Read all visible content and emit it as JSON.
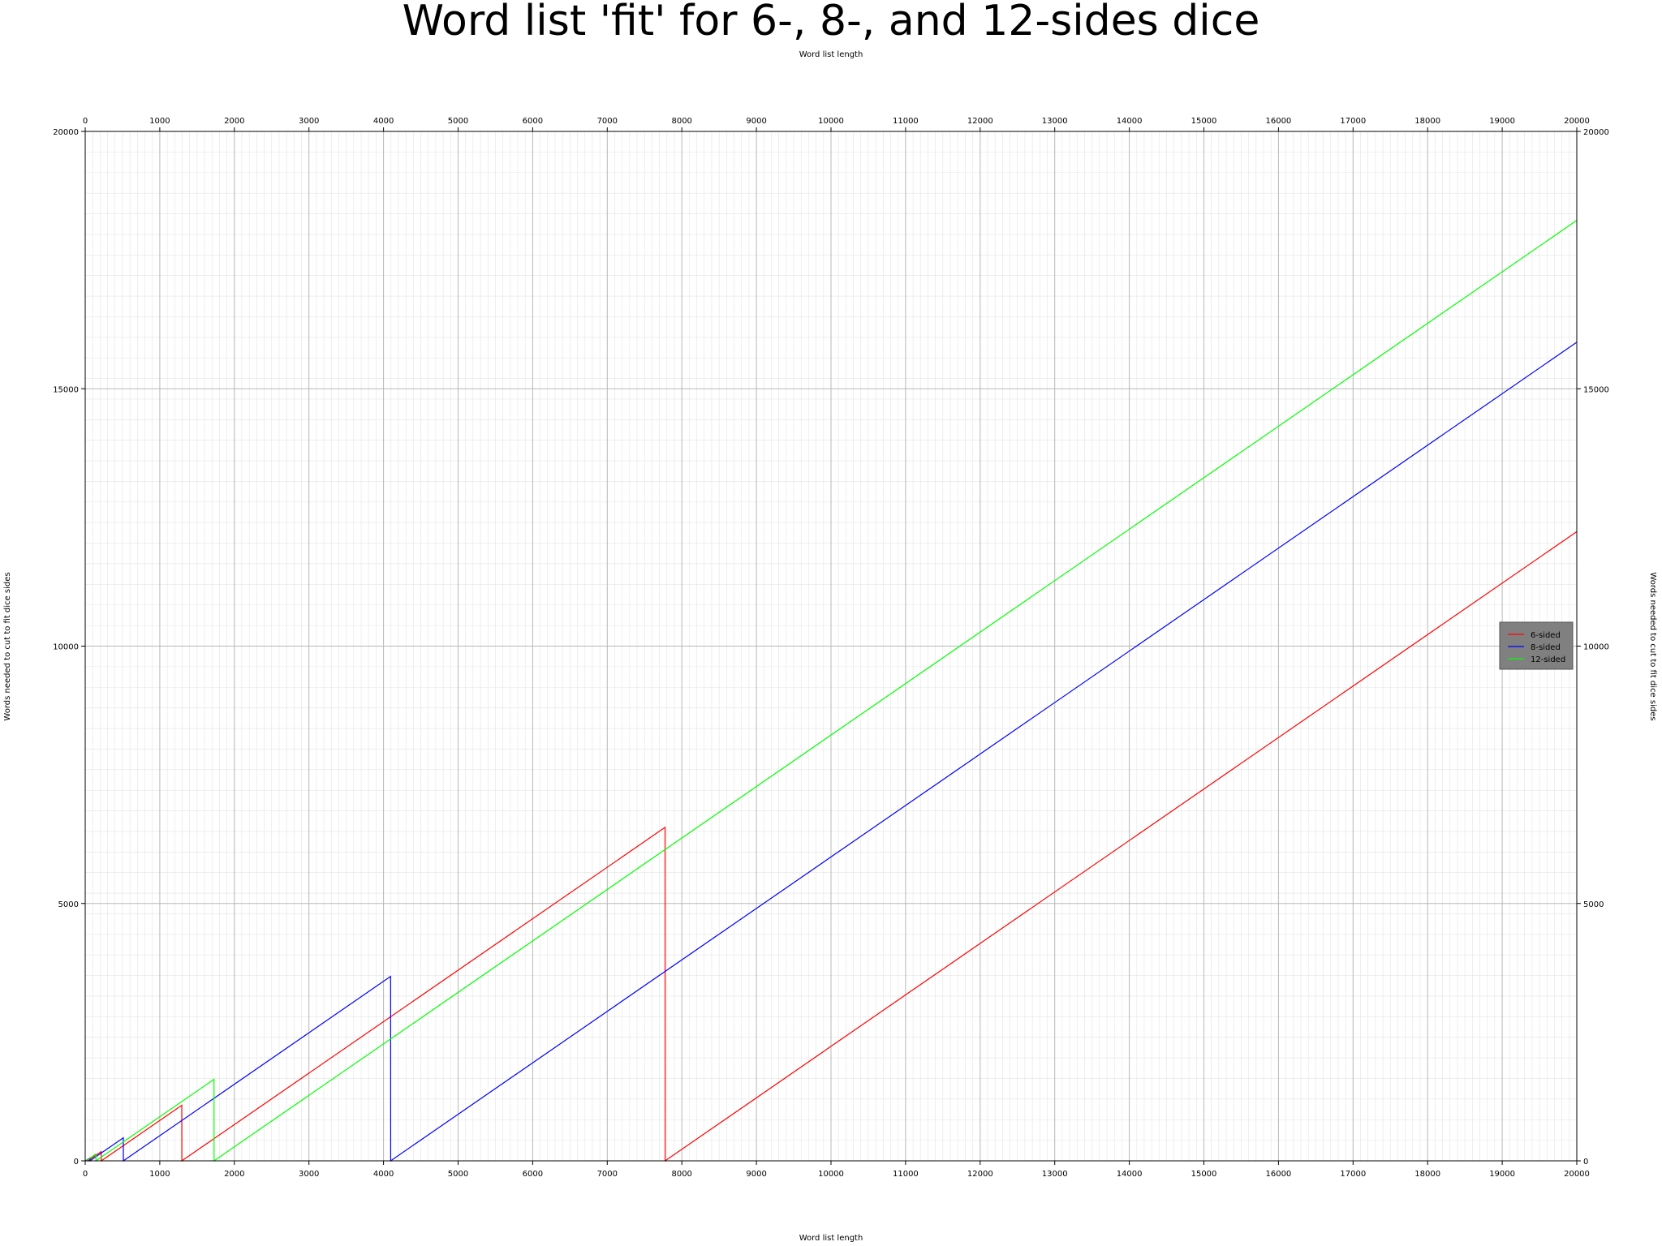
{
  "chart_data": {
    "type": "line",
    "title": "Word list 'fit' for 6-, 8-, and 12-sides dice",
    "xlabel": "Word list length",
    "ylabel": "Words needed to cut to fit dice sides",
    "xlim": [
      0,
      20000
    ],
    "ylim": [
      0,
      20000
    ],
    "x_ticks": [
      0,
      1000,
      2000,
      3000,
      4000,
      5000,
      6000,
      7000,
      8000,
      9000,
      10000,
      11000,
      12000,
      13000,
      14000,
      15000,
      16000,
      17000,
      18000,
      19000,
      20000
    ],
    "y_ticks": [
      0,
      5000,
      10000,
      15000,
      20000
    ],
    "grid": true,
    "legend_position": "right",
    "series": [
      {
        "name": "6-sided",
        "color": "#ff0000",
        "points": [
          [
            6,
            0
          ],
          [
            35,
            29
          ],
          [
            36,
            0
          ],
          [
            215,
            179
          ],
          [
            216,
            0
          ],
          [
            1295,
            1079
          ],
          [
            1296,
            0
          ],
          [
            7775,
            6479
          ],
          [
            7776,
            0
          ],
          [
            20000,
            12224
          ]
        ]
      },
      {
        "name": "8-sided",
        "color": "#0000ff",
        "points": [
          [
            8,
            0
          ],
          [
            63,
            55
          ],
          [
            64,
            0
          ],
          [
            511,
            447
          ],
          [
            512,
            0
          ],
          [
            4095,
            3583
          ],
          [
            4096,
            0
          ],
          [
            20000,
            15904
          ]
        ]
      },
      {
        "name": "12-sided",
        "color": "#00ff00",
        "points": [
          [
            12,
            0
          ],
          [
            143,
            131
          ],
          [
            144,
            0
          ],
          [
            1727,
            1583
          ],
          [
            1728,
            0
          ],
          [
            20000,
            18272
          ]
        ]
      }
    ]
  }
}
